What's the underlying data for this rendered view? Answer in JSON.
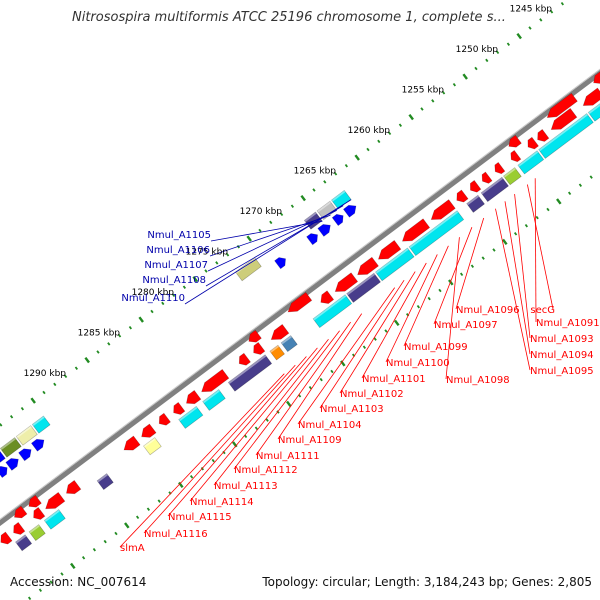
{
  "header": {
    "title": "Nitrosospira multiformis ATCC 25196 chromosome 1, complete s..."
  },
  "footer": {
    "accession": "Accession: NC_007614",
    "summary": "Topology: circular; Length: 3,184,243 bp; Genes: 2,805"
  },
  "colors": {
    "forward_gene": "#ff0000",
    "reverse_gene": "#0000ff",
    "forward_label": "#ff0000",
    "reverse_label": "#0000aa",
    "ruler_tick": "#228b22",
    "backbone": "#808080",
    "cog_cyan": "#00e5ee",
    "cog_purple": "#483d8b"
  },
  "ruler": {
    "ticks": [
      "1245 kbp",
      "1250 kbp",
      "1255 kbp",
      "1260 kbp",
      "1265 kbp",
      "1270 kbp",
      "1275 kbp",
      "1280 kbp",
      "1285 kbp",
      "1290 kbp"
    ]
  },
  "labels": {
    "reverse": [
      "Nmul_A1105",
      "Nmul_A1106",
      "Nmul_A1107",
      "Nmul_A1108",
      "Nmul_A1110"
    ],
    "forward": [
      "secG",
      "Nmul_A1091",
      "Nmul_A1093",
      "Nmul_A1094",
      "Nmul_A1095",
      "Nmul_A1096",
      "Nmul_A1097",
      "Nmul_A1098",
      "Nmul_A1099",
      "Nmul_A1100",
      "Nmul_A1101",
      "Nmul_A1102",
      "Nmul_A1103",
      "Nmul_A1104",
      "Nmul_A1109",
      "Nmul_A1111",
      "Nmul_A1112",
      "Nmul_A1113",
      "Nmul_A1114",
      "Nmul_A1115",
      "Nmul_A1116",
      "slmA"
    ]
  }
}
